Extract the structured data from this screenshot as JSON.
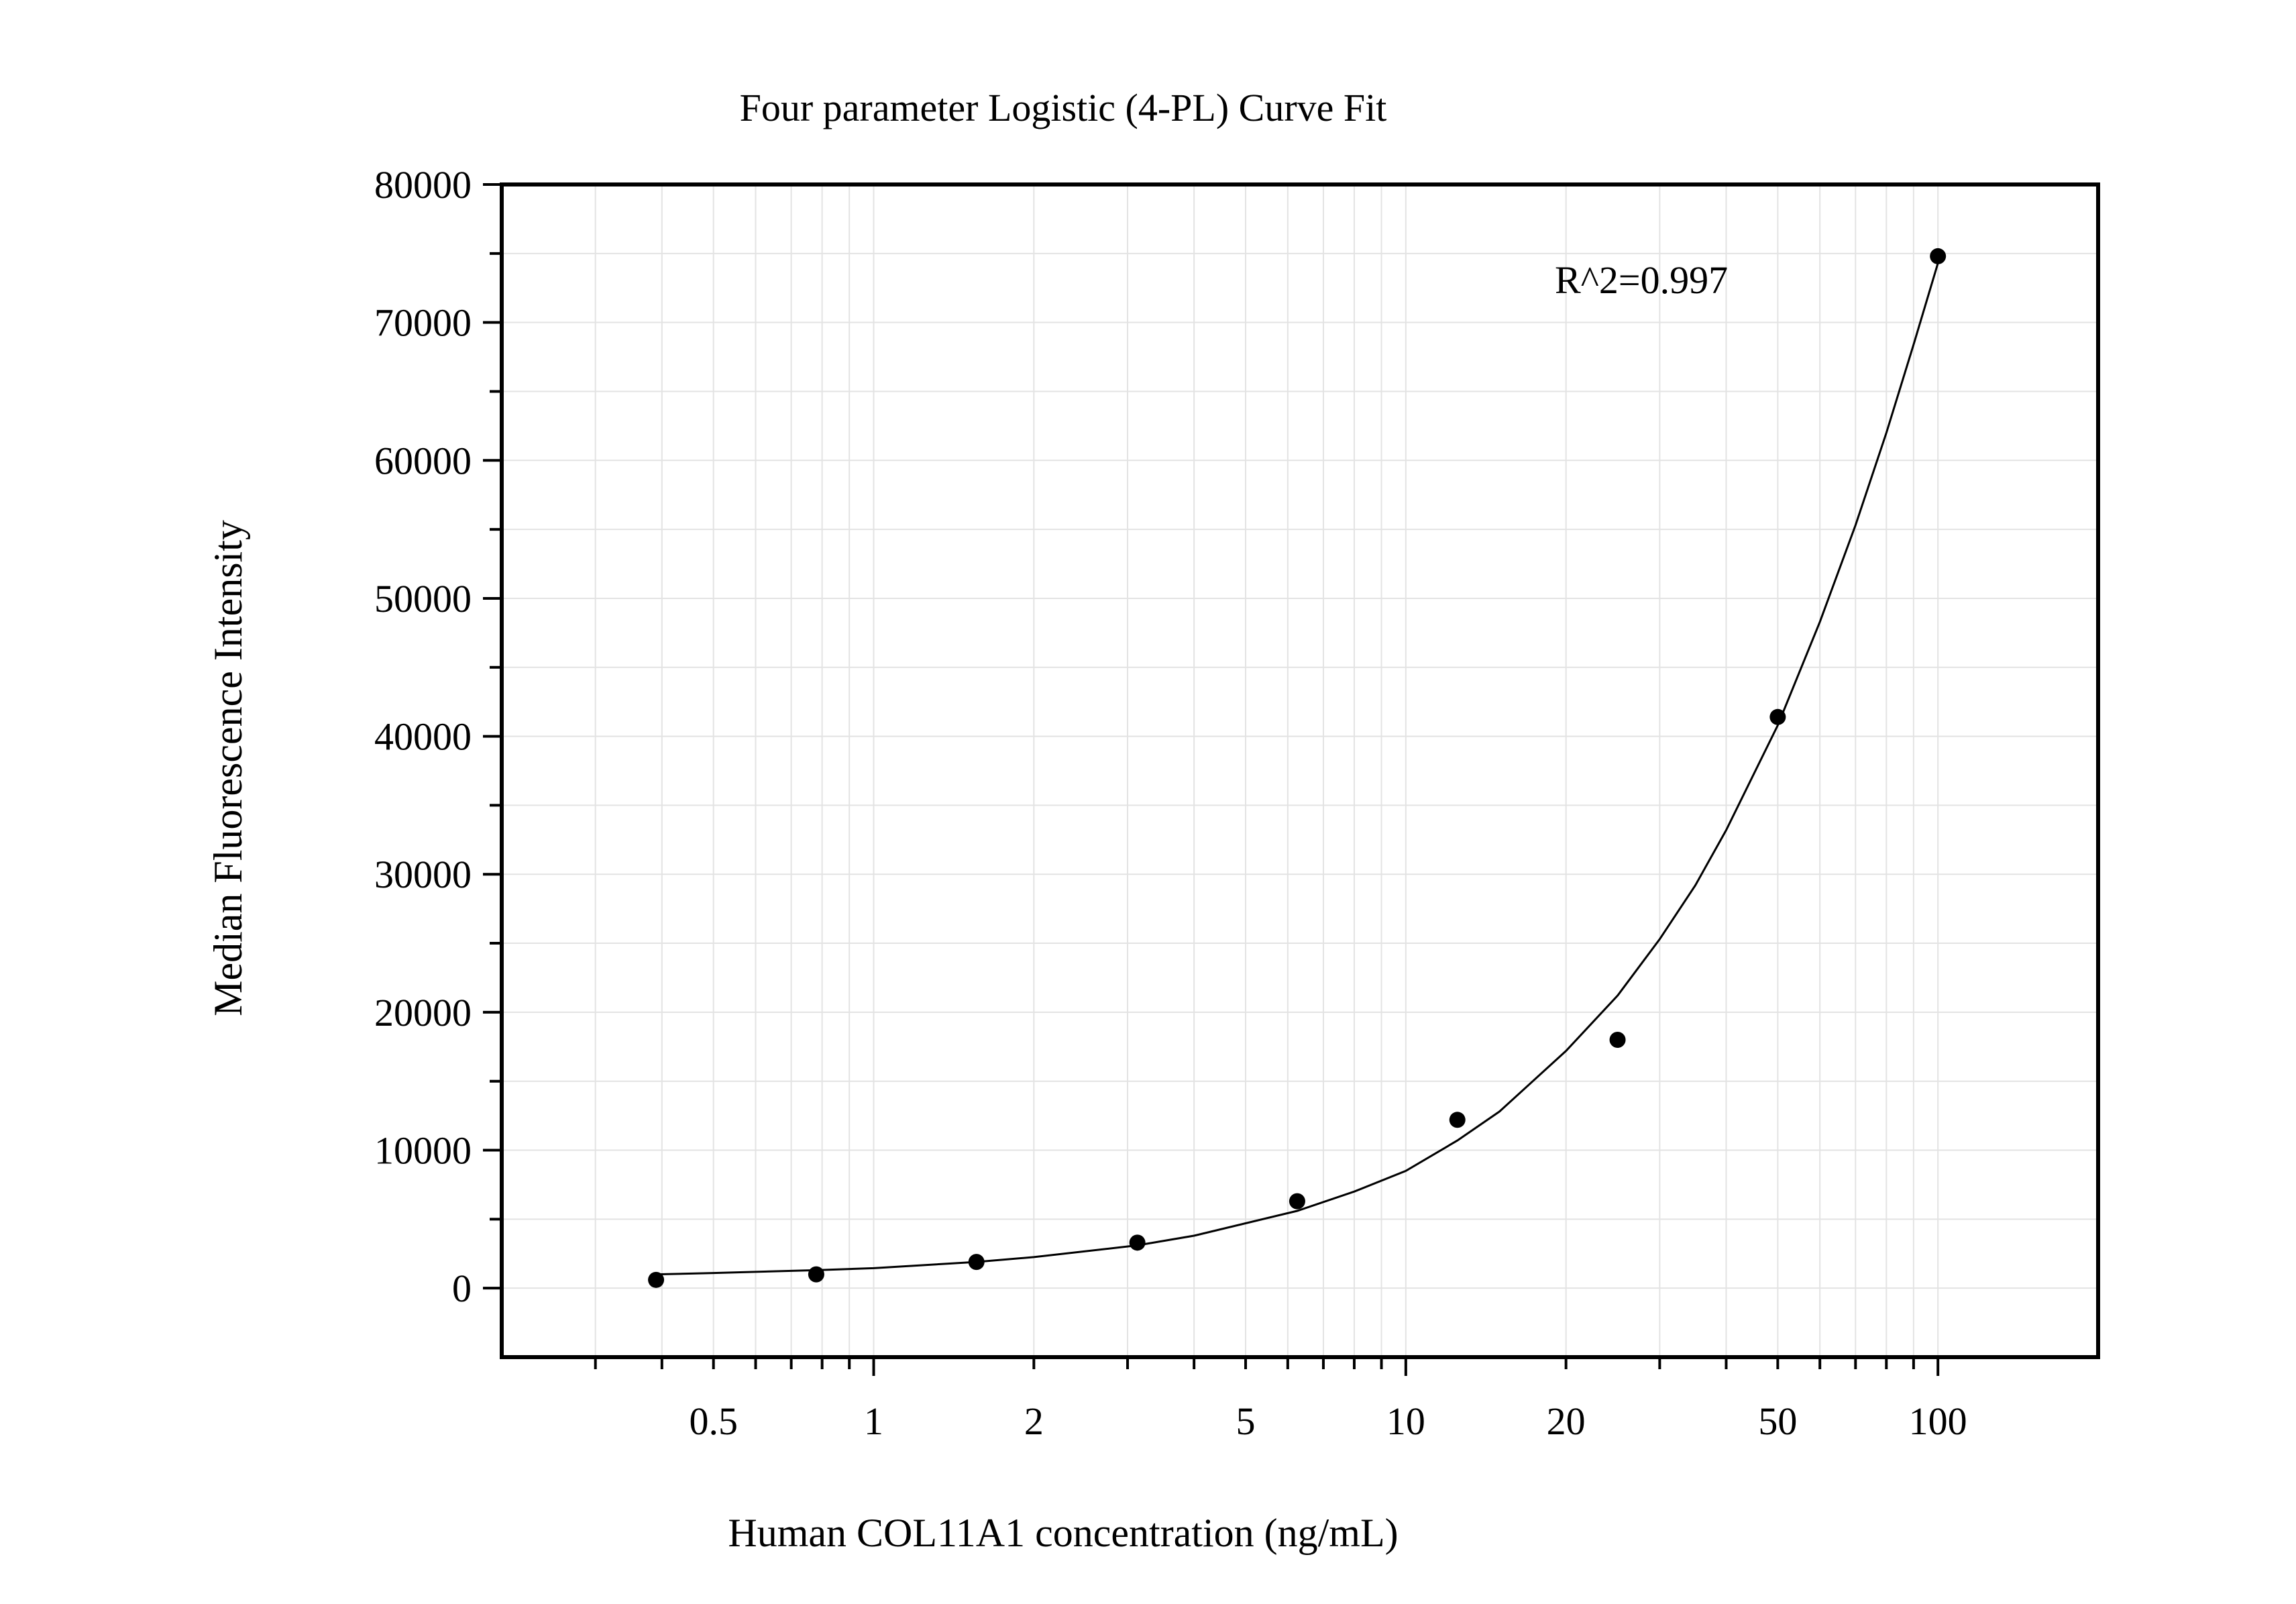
{
  "chart_data": {
    "type": "scatter",
    "title": "Four parameter Logistic (4-PL) Curve Fit",
    "xlabel": "Human COL11A1 concentration (ng/mL)",
    "ylabel": "Median Fluorescence Intensity",
    "x_scale": "log",
    "xlim": [
      0.2,
      200
    ],
    "ylim": [
      -5000,
      80000
    ],
    "x_ticks": [
      0.5,
      1,
      2,
      5,
      10,
      20,
      50,
      100
    ],
    "x_tick_labels": [
      "0.5",
      "1",
      "2",
      "5",
      "10",
      "20",
      "50",
      "100"
    ],
    "y_ticks": [
      0,
      10000,
      20000,
      30000,
      40000,
      50000,
      60000,
      70000,
      80000
    ],
    "y_tick_labels": [
      "0",
      "10000",
      "20000",
      "30000",
      "40000",
      "50000",
      "60000",
      "70000",
      "80000"
    ],
    "grid": true,
    "legend": "none",
    "annotation": "R^2=0.997",
    "series": [
      {
        "kind": "points",
        "x": [
          0.39,
          0.78,
          1.56,
          3.13,
          6.25,
          12.5,
          25,
          50,
          100
        ],
        "y": [
          600,
          1000,
          1900,
          3300,
          6300,
          12200,
          18000,
          41400,
          74800
        ]
      },
      {
        "kind": "fit-curve",
        "x": [
          0.39,
          0.5,
          0.78,
          1,
          1.56,
          2,
          3.13,
          4,
          6.25,
          8,
          10,
          12.5,
          15,
          20,
          25,
          30,
          35,
          40,
          50,
          60,
          70,
          80,
          90,
          100
        ],
        "y": [
          1000,
          1100,
          1300,
          1450,
          1900,
          2250,
          3100,
          3800,
          5600,
          7000,
          8500,
          10700,
          12800,
          17200,
          21200,
          25300,
          29200,
          33200,
          40800,
          48300,
          55300,
          62000,
          68400,
          74300
        ]
      }
    ],
    "colors": {
      "points": "#000000",
      "curve": "#000000",
      "grid": "#e3e3e3",
      "frame": "#000000"
    }
  }
}
